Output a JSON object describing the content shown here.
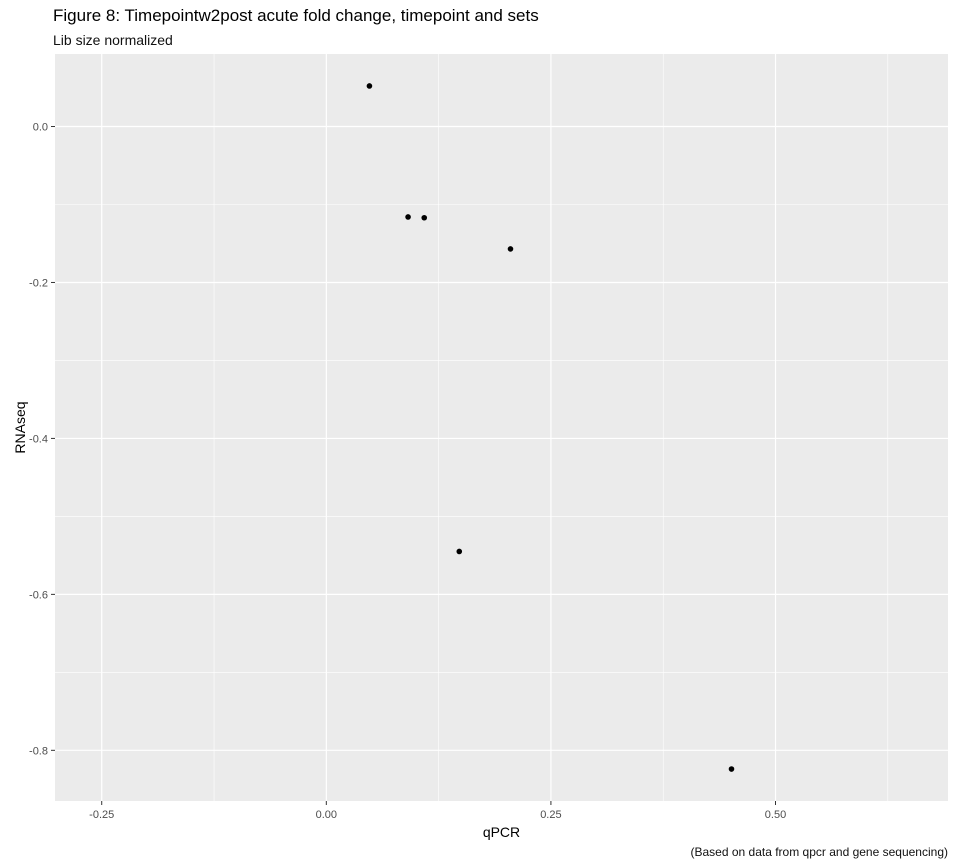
{
  "chart_data": {
    "type": "scatter",
    "title": "Figure 8: Timepointw2post acute fold change, timepoint and sets",
    "subtitle": "Lib size normalized",
    "caption": "(Based on data from qpcr and gene sequencing)",
    "xlabel": "qPCR",
    "ylabel": "RNAseq",
    "xlim": [
      -0.302,
      0.692
    ],
    "ylim": [
      -0.865,
      0.093
    ],
    "xticks": [
      -0.25,
      0.0,
      0.25,
      0.5
    ],
    "xtick_labels": [
      "-0.25",
      "0.00",
      "0.25",
      "0.50"
    ],
    "yticks": [
      0.0,
      -0.2,
      -0.4,
      -0.6,
      -0.8
    ],
    "ytick_labels": [
      "0.0",
      "-0.2",
      "-0.4",
      "-0.6",
      "-0.8"
    ],
    "grid": true,
    "background": "#ebebeb",
    "point_color": "#000000",
    "points": [
      {
        "x": 0.048,
        "y": 0.052
      },
      {
        "x": 0.091,
        "y": -0.116
      },
      {
        "x": 0.109,
        "y": -0.117
      },
      {
        "x": 0.205,
        "y": -0.157
      },
      {
        "x": 0.148,
        "y": -0.545
      },
      {
        "x": 0.451,
        "y": -0.824
      }
    ]
  }
}
